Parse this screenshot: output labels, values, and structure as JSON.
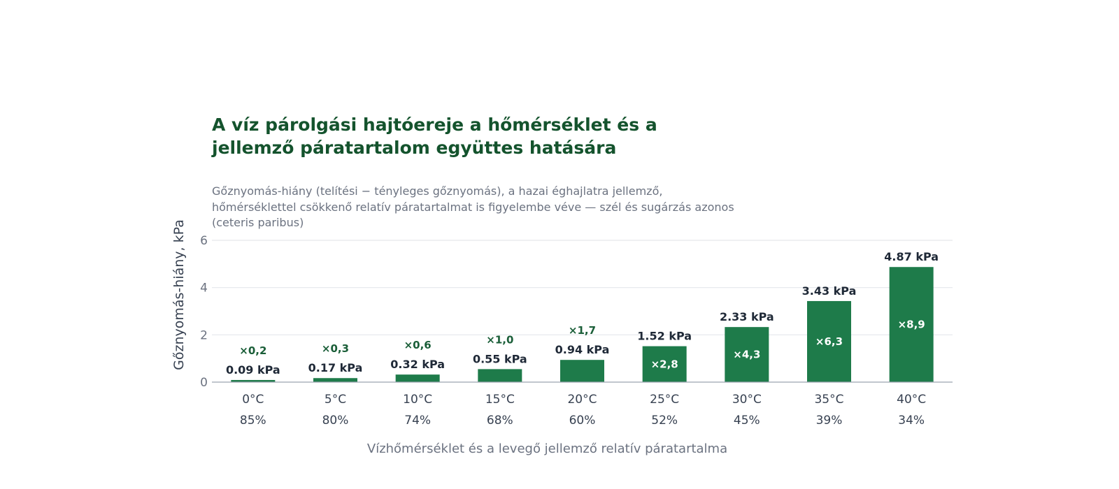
{
  "chart_data": {
    "type": "bar",
    "title": "A víz párolgási hajtóereje a hőmérséklet és a jellemző páratartalom együttes hatására",
    "subtitle": "Gőznyomás-hiány (telítési − tényleges gőznyomás), a hazai éghajlatra jellemző, hőmérséklettel csökkenő relatív páratartalmat is figyelembe véve — szél és sugárzás azonos (ceteris paribus)",
    "xlabel": "Vízhőmérséklet és a levegő jellemző relatív páratartalma",
    "ylabel": "Gőznyomás-hiány, kPa",
    "ylim": [
      0,
      6
    ],
    "yticks": [
      "0",
      "2",
      "4",
      "6"
    ],
    "grid": true,
    "categories": [
      "0°C",
      "5°C",
      "10°C",
      "15°C",
      "20°C",
      "25°C",
      "30°C",
      "35°C",
      "40°C"
    ],
    "humidity": [
      "85%",
      "80%",
      "74%",
      "68%",
      "60%",
      "52%",
      "45%",
      "39%",
      "34%"
    ],
    "values": [
      0.09,
      0.17,
      0.32,
      0.55,
      0.94,
      1.52,
      2.33,
      3.43,
      4.87
    ],
    "value_labels": [
      "0.09 kPa",
      "0.17 kPa",
      "0.32 kPa",
      "0.55 kPa",
      "0.94 kPa",
      "1.52 kPa",
      "2.33 kPa",
      "3.43 kPa",
      "4.87 kPa"
    ],
    "ratio_labels": [
      "×0,2",
      "×0,3",
      "×0,6",
      "×1,0",
      "×1,7",
      "×2,8",
      "×4,3",
      "×6,3",
      "×8,9"
    ],
    "bar_color": "#1e7b4a",
    "ratio_color_outside": "#1a5e38",
    "ratio_color_inside": "#ffffff"
  }
}
